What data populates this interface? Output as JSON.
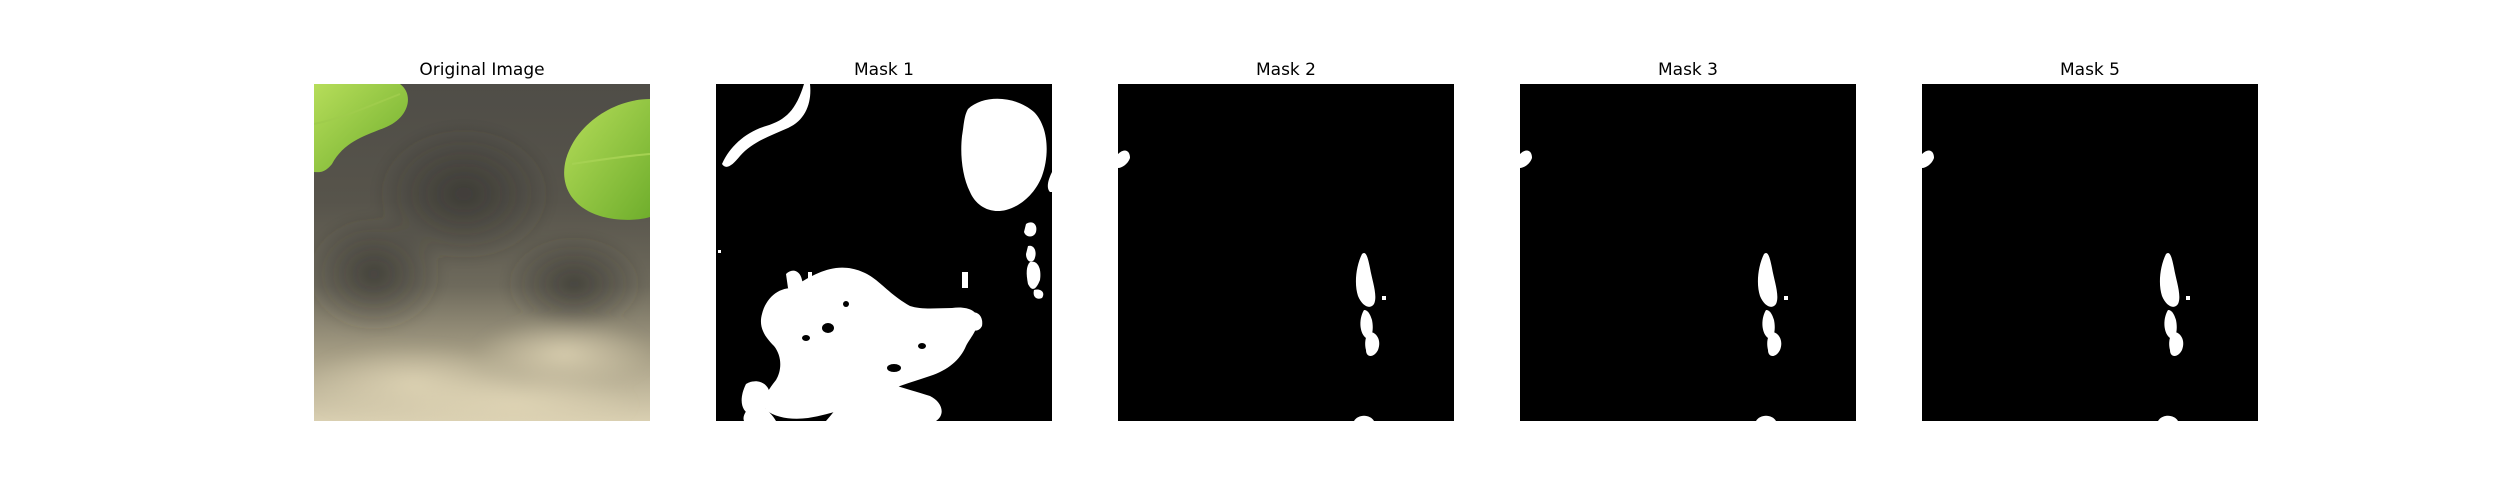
{
  "figure": {
    "panels": [
      {
        "title": "Original Image",
        "kind": "photo"
      },
      {
        "title": "Mask 1",
        "kind": "mask"
      },
      {
        "title": "Mask 2",
        "kind": "mask"
      },
      {
        "title": "Mask 3",
        "kind": "mask"
      },
      {
        "title": "Mask 5",
        "kind": "mask"
      }
    ]
  },
  "colors": {
    "background": "#ffffff",
    "mask_background": "#000000",
    "mask_foreground": "#ffffff",
    "leaf_green": "#8cc63f",
    "photo_dark": "#4a4840",
    "photo_light": "#d8ceb0"
  }
}
